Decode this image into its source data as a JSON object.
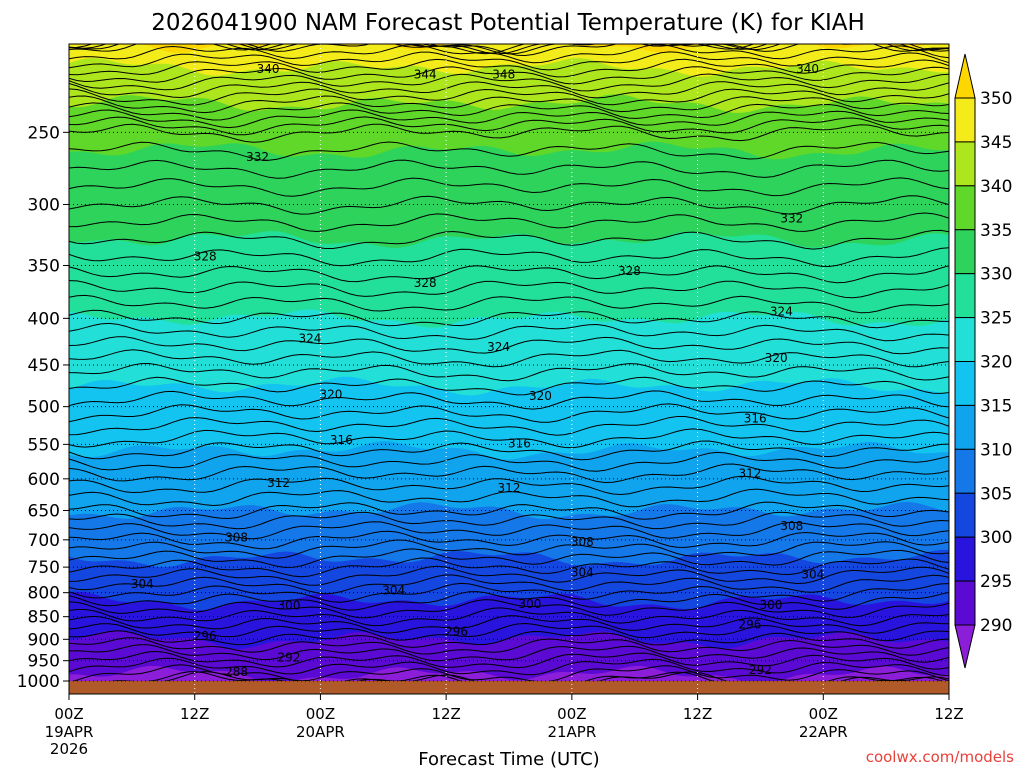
{
  "chart_data": {
    "type": "heatmap",
    "title": "2026041900 NAM Forecast Potential Temperature (K) for KIAH",
    "xlabel": "Forecast Time (UTC)",
    "ylabel": "",
    "credit": "coolwx.com/models",
    "x_range_hours": [
      0,
      84
    ],
    "y_range_hpa": [
      1000,
      200
    ],
    "y_ticks": [
      "250",
      "300",
      "350",
      "400",
      "450",
      "500",
      "550",
      "600",
      "650",
      "700",
      "750",
      "800",
      "850",
      "900",
      "950",
      "1000"
    ],
    "x_ticks": [
      {
        "hour": 0,
        "label": "00Z",
        "date": "19APR",
        "year": "2026"
      },
      {
        "hour": 12,
        "label": "12Z",
        "date": "",
        "year": ""
      },
      {
        "hour": 24,
        "label": "00Z",
        "date": "20APR",
        "year": ""
      },
      {
        "hour": 36,
        "label": "12Z",
        "date": "",
        "year": ""
      },
      {
        "hour": 48,
        "label": "00Z",
        "date": "21APR",
        "year": ""
      },
      {
        "hour": 60,
        "label": "12Z",
        "date": "",
        "year": ""
      },
      {
        "hour": 72,
        "label": "00Z",
        "date": "22APR",
        "year": ""
      },
      {
        "hour": 84,
        "label": "12Z",
        "date": "",
        "year": ""
      }
    ],
    "colorbar": {
      "labels": [
        "350",
        "345",
        "340",
        "335",
        "330",
        "325",
        "320",
        "315",
        "310",
        "305",
        "300",
        "295",
        "290"
      ],
      "band_colors": [
        "#ffd700",
        "#f4ec1a",
        "#aee61e",
        "#5fd82a",
        "#2dd35a",
        "#22e09a",
        "#22e0d8",
        "#14c4f0",
        "#10a4ee",
        "#1478e8",
        "#1446e0",
        "#2814dc",
        "#5a0ad2",
        "#8c1eda"
      ]
    },
    "isentrope_levels": [
      288,
      292,
      296,
      300,
      304,
      308,
      312,
      316,
      320,
      324,
      328,
      332,
      336,
      340,
      344,
      348
    ],
    "profile": [
      {
        "p": 1000,
        "theta": 289
      },
      {
        "p": 950,
        "theta": 292
      },
      {
        "p": 900,
        "theta": 295
      },
      {
        "p": 850,
        "theta": 298
      },
      {
        "p": 800,
        "theta": 301
      },
      {
        "p": 750,
        "theta": 304
      },
      {
        "p": 700,
        "theta": 307
      },
      {
        "p": 650,
        "theta": 310
      },
      {
        "p": 600,
        "theta": 312.5
      },
      {
        "p": 550,
        "theta": 315.5
      },
      {
        "p": 500,
        "theta": 318.5
      },
      {
        "p": 450,
        "theta": 321.5
      },
      {
        "p": 400,
        "theta": 325
      },
      {
        "p": 350,
        "theta": 328.5
      },
      {
        "p": 300,
        "theta": 332
      },
      {
        "p": 250,
        "theta": 336
      },
      {
        "p": 220,
        "theta": 343
      }
    ],
    "contour_labels": [
      {
        "text": "340",
        "hour": 19,
        "p": 213
      },
      {
        "text": "344",
        "hour": 34,
        "p": 216
      },
      {
        "text": "348",
        "hour": 41.5,
        "p": 216
      },
      {
        "text": "340",
        "hour": 70.5,
        "p": 213
      },
      {
        "text": "332",
        "hour": 18,
        "p": 266
      },
      {
        "text": "332",
        "hour": 69,
        "p": 311
      },
      {
        "text": "328",
        "hour": 13,
        "p": 342
      },
      {
        "text": "328",
        "hour": 34,
        "p": 366
      },
      {
        "text": "328",
        "hour": 53.5,
        "p": 355
      },
      {
        "text": "324",
        "hour": 23,
        "p": 421
      },
      {
        "text": "324",
        "hour": 41,
        "p": 430
      },
      {
        "text": "324",
        "hour": 68,
        "p": 393
      },
      {
        "text": "320",
        "hour": 25,
        "p": 485
      },
      {
        "text": "320",
        "hour": 45,
        "p": 487
      },
      {
        "text": "320",
        "hour": 67.5,
        "p": 442
      },
      {
        "text": "316",
        "hour": 26,
        "p": 544
      },
      {
        "text": "316",
        "hour": 43,
        "p": 549
      },
      {
        "text": "316",
        "hour": 65.5,
        "p": 515
      },
      {
        "text": "312",
        "hour": 20,
        "p": 606
      },
      {
        "text": "312",
        "hour": 42,
        "p": 614
      },
      {
        "text": "312",
        "hour": 65,
        "p": 592
      },
      {
        "text": "308",
        "hour": 16,
        "p": 696
      },
      {
        "text": "308",
        "hour": 49,
        "p": 704
      },
      {
        "text": "308",
        "hour": 69,
        "p": 676
      },
      {
        "text": "304",
        "hour": 7,
        "p": 783
      },
      {
        "text": "304",
        "hour": 31,
        "p": 796
      },
      {
        "text": "304",
        "hour": 49,
        "p": 760
      },
      {
        "text": "304",
        "hour": 71,
        "p": 764
      },
      {
        "text": "300",
        "hour": 21,
        "p": 826
      },
      {
        "text": "300",
        "hour": 44,
        "p": 823
      },
      {
        "text": "300",
        "hour": 67,
        "p": 825
      },
      {
        "text": "296",
        "hour": 13,
        "p": 893
      },
      {
        "text": "296",
        "hour": 37,
        "p": 882
      },
      {
        "text": "296",
        "hour": 65,
        "p": 867
      },
      {
        "text": "292",
        "hour": 21,
        "p": 942
      },
      {
        "text": "292",
        "hour": 66,
        "p": 973
      },
      {
        "text": "288",
        "hour": 16,
        "p": 977
      }
    ]
  }
}
